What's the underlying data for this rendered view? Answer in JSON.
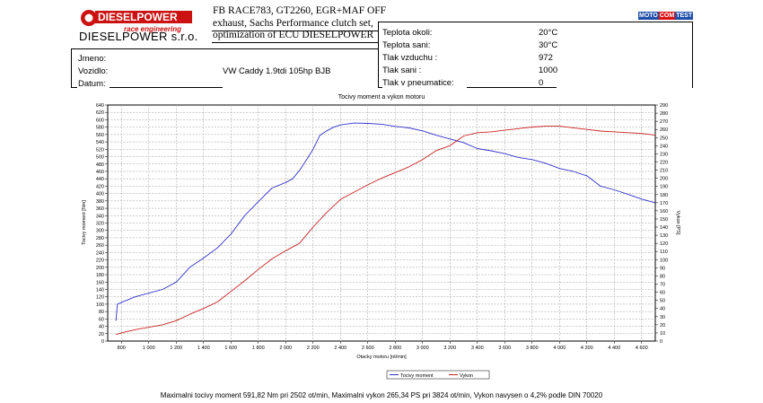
{
  "header": {
    "logo_brand": "DIESELPOWER",
    "logo_tagline": "race engineering",
    "company_name": "DIESELPOWER s.r.o.",
    "description_lines": [
      "FB RACE783, GT2260, EGR+MAF OFF",
      "exhaust, Sachs Performance clutch set,",
      "optimization of ECU DIESELPOWER"
    ],
    "motocomtest_logo": {
      "left": "MOTO",
      "mid": "COM",
      "right": "TEST"
    }
  },
  "info": {
    "jmeno_label": "Jmeno:",
    "jmeno_value": "",
    "vozidlo_label": "Vozidlo:",
    "vozidlo_value": "VW Caddy 1.9tdi 105hp BJB",
    "datum_label": "Datum:",
    "datum_value": ""
  },
  "conditions": {
    "rows": [
      {
        "label": "Teplota okoli:",
        "value": "20°C"
      },
      {
        "label": "Teplota sani:",
        "value": "30°C"
      },
      {
        "label": "Tlak vzduchu :",
        "value": "972"
      },
      {
        "label": "Tlak sani :",
        "value": "1000"
      },
      {
        "label": "Tlak v pneumatice:",
        "value": "0"
      }
    ]
  },
  "chart_data": {
    "type": "line",
    "title": "Tocivy moment a vykon motoru",
    "xlabel": "Otacky motoru [ot/min]",
    "ylabel_left": "Tocivy moment [Nm]",
    "ylabel_right": "Vykon [PS]",
    "xlim": [
      700,
      4700
    ],
    "ylim_left": [
      0,
      640
    ],
    "ylim_right": [
      0,
      290
    ],
    "x_ticks": [
      800,
      1000,
      1200,
      1400,
      1600,
      1800,
      2000,
      2200,
      2400,
      2600,
      2800,
      3000,
      3200,
      3400,
      3600,
      3800,
      4000,
      4200,
      4400,
      4600
    ],
    "x_tick_labels": [
      "800",
      "1 000",
      "1 200",
      "1 400",
      "1 600",
      "1 800",
      "2 000",
      "2 200",
      "2 400",
      "2 600",
      "2 800",
      "3 000",
      "3 200",
      "3 400",
      "3 600",
      "3 800",
      "4 000",
      "4 200",
      "4 400",
      "4 600"
    ],
    "left_ticks": [
      0,
      20,
      40,
      60,
      80,
      100,
      120,
      140,
      160,
      180,
      200,
      220,
      240,
      260,
      280,
      300,
      320,
      340,
      360,
      380,
      400,
      420,
      440,
      460,
      480,
      500,
      520,
      540,
      560,
      580,
      600,
      620,
      640
    ],
    "right_ticks": [
      0,
      10,
      20,
      30,
      40,
      50,
      60,
      70,
      80,
      90,
      100,
      110,
      120,
      130,
      140,
      150,
      160,
      170,
      180,
      190,
      200,
      210,
      220,
      230,
      240,
      250,
      260,
      270,
      280,
      290
    ],
    "grid": true,
    "legend_position": "bottom-center",
    "series": [
      {
        "name": "Tocivy moment",
        "axis": "left",
        "color": "#3333cc",
        "x": [
          760,
          770,
          800,
          900,
          1000,
          1100,
          1200,
          1300,
          1400,
          1500,
          1600,
          1700,
          1800,
          1900,
          2000,
          2050,
          2100,
          2150,
          2200,
          2250,
          2300,
          2350,
          2400,
          2500,
          2600,
          2700,
          2800,
          2900,
          3000,
          3100,
          3200,
          3300,
          3400,
          3500,
          3600,
          3700,
          3800,
          3900,
          4000,
          4100,
          4200,
          4300,
          4400,
          4500,
          4600,
          4700
        ],
        "y": [
          55,
          100,
          105,
          120,
          130,
          140,
          160,
          200,
          225,
          252,
          290,
          340,
          378,
          415,
          430,
          440,
          462,
          490,
          520,
          558,
          570,
          580,
          586,
          591,
          590,
          588,
          582,
          578,
          570,
          558,
          548,
          538,
          522,
          516,
          508,
          498,
          492,
          482,
          468,
          460,
          448,
          420,
          410,
          398,
          385,
          375
        ]
      },
      {
        "name": "Vykon",
        "axis": "right",
        "color": "#cc2222",
        "x": [
          760,
          800,
          900,
          1000,
          1100,
          1200,
          1300,
          1400,
          1500,
          1600,
          1700,
          1800,
          1900,
          2000,
          2100,
          2200,
          2300,
          2400,
          2500,
          2600,
          2700,
          2800,
          2900,
          3000,
          3100,
          3200,
          3300,
          3400,
          3500,
          3600,
          3700,
          3800,
          3900,
          4000,
          4100,
          4200,
          4300,
          4400,
          4500,
          4600,
          4700
        ],
        "y": [
          8,
          10,
          14,
          17,
          20,
          25,
          33,
          40,
          48,
          61,
          74,
          88,
          101,
          111,
          120,
          140,
          158,
          174,
          183,
          192,
          200,
          207,
          214,
          223,
          234,
          240,
          252,
          256,
          257,
          259,
          261,
          263,
          264,
          264,
          262,
          260,
          258,
          257,
          256,
          255,
          253
        ]
      }
    ]
  },
  "legend": {
    "torque_label": "Tocivy moment",
    "power_label": "Vykon"
  },
  "footer": {
    "summary": "Maximalni tocivy moment 591,82 Nm pri 2502 ot/min,  Maximalni vykon 265,34 PS pri 3824 ot/min,  Vykon navysen o 4,2% podle DIN 70020"
  }
}
